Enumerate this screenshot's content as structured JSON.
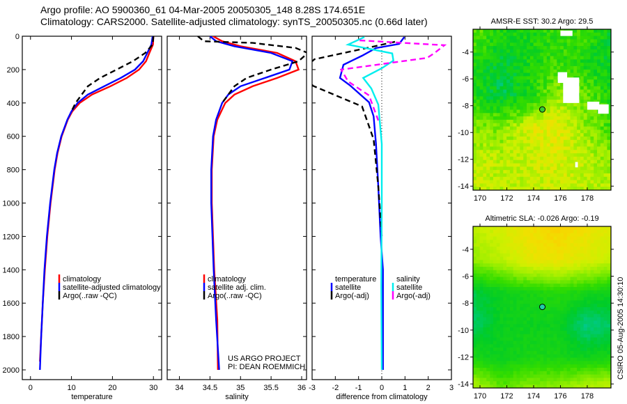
{
  "title_line1": "Argo profile: AO 5900360_61 04-Mar-2005 20050305_148 8.28S 174.651E",
  "title_line2": "Climatology: CARS2000. Satellite-adjusted climatology: synTS_20050305.nc (0.66d later)",
  "credit_line1": "US ARGO PROJECT",
  "credit_line2": "PI: DEAN ROEMMICH",
  "timestamp": "CSIRO 05-Aug-2005 14:30:10",
  "colors": {
    "climatology": "#ff0000",
    "satellite": "#0000ff",
    "argo": "#000000",
    "sal_satellite": "#00eeee",
    "sal_argo": "#ff00ff"
  },
  "chart_data": [
    {
      "type": "line",
      "id": "temperature",
      "xlabel": "temperature",
      "ylabel": "",
      "xlim": [
        -2,
        32
      ],
      "ylim": [
        2055,
        0
      ],
      "xticks": [
        0,
        10,
        20,
        30
      ],
      "yticks": [
        0,
        200,
        400,
        600,
        800,
        1000,
        1200,
        1400,
        1600,
        1800,
        2000
      ],
      "legend": [
        "climatology",
        "satellite-adjusted climatology",
        "Argo(..raw -QC)"
      ],
      "series": [
        {
          "name": "climatology",
          "color": "#ff0000",
          "dash": false,
          "points": [
            [
              30,
              0
            ],
            [
              29.9,
              50
            ],
            [
              29,
              100
            ],
            [
              28.2,
              150
            ],
            [
              26.5,
              200
            ],
            [
              23.5,
              250
            ],
            [
              19.5,
              300
            ],
            [
              15,
              350
            ],
            [
              12,
              400
            ],
            [
              10.2,
              450
            ],
            [
              9.1,
              500
            ],
            [
              7.6,
              600
            ],
            [
              6.6,
              700
            ],
            [
              5.9,
              800
            ],
            [
              4.9,
              1000
            ],
            [
              4.1,
              1200
            ],
            [
              3.5,
              1400
            ],
            [
              3,
              1600
            ],
            [
              2.6,
              1800
            ],
            [
              2.3,
              1950
            ]
          ]
        },
        {
          "name": "satellite-adjusted climatology",
          "color": "#0000ff",
          "dash": false,
          "points": [
            [
              29.8,
              0
            ],
            [
              29.5,
              50
            ],
            [
              28.5,
              100
            ],
            [
              27.5,
              150
            ],
            [
              25.5,
              200
            ],
            [
              22,
              250
            ],
            [
              18,
              300
            ],
            [
              14,
              350
            ],
            [
              11.5,
              400
            ],
            [
              10,
              450
            ],
            [
              9,
              500
            ],
            [
              7.5,
              600
            ],
            [
              6.5,
              700
            ],
            [
              5.8,
              800
            ],
            [
              4.8,
              1000
            ],
            [
              4,
              1200
            ],
            [
              3.4,
              1400
            ],
            [
              3,
              1600
            ],
            [
              2.6,
              1800
            ],
            [
              2.3,
              2000
            ]
          ]
        },
        {
          "name": "Argo(..raw -QC)",
          "color": "#000000",
          "dash": true,
          "points": [
            [
              30,
              0
            ],
            [
              29.8,
              50
            ],
            [
              28,
              100
            ],
            [
              25,
              150
            ],
            [
              21,
              200
            ],
            [
              17,
              250
            ],
            [
              14,
              300
            ],
            [
              12.5,
              350
            ],
            [
              11,
              400
            ],
            [
              10,
              450
            ]
          ]
        }
      ]
    },
    {
      "type": "line",
      "id": "salinity",
      "xlabel": "salinity",
      "xlim": [
        33.8,
        36.08
      ],
      "ylim": [
        2055,
        0
      ],
      "xticks": [
        34,
        34.5,
        35,
        35.5,
        36
      ],
      "legend": [
        "climatology",
        "satellite adj. clim.",
        "Argo(..raw -QC)"
      ],
      "series": [
        {
          "name": "climatology",
          "color": "#ff0000",
          "dash": false,
          "points": [
            [
              34.55,
              0
            ],
            [
              34.7,
              30
            ],
            [
              35.0,
              60
            ],
            [
              35.6,
              100
            ],
            [
              35.9,
              150
            ],
            [
              35.95,
              200
            ],
            [
              35.6,
              250
            ],
            [
              35.2,
              300
            ],
            [
              34.9,
              350
            ],
            [
              34.75,
              400
            ],
            [
              34.62,
              500
            ],
            [
              34.56,
              600
            ],
            [
              34.53,
              800
            ],
            [
              34.53,
              1000
            ],
            [
              34.57,
              1400
            ],
            [
              34.62,
              1700
            ],
            [
              34.63,
              2000
            ]
          ]
        },
        {
          "name": "satellite adj. clim.",
          "color": "#0000ff",
          "dash": false,
          "points": [
            [
              34.5,
              0
            ],
            [
              34.6,
              30
            ],
            [
              34.9,
              60
            ],
            [
              35.5,
              100
            ],
            [
              35.85,
              150
            ],
            [
              35.8,
              200
            ],
            [
              35.4,
              250
            ],
            [
              35.0,
              300
            ],
            [
              34.8,
              350
            ],
            [
              34.7,
              400
            ],
            [
              34.6,
              500
            ],
            [
              34.55,
              600
            ],
            [
              34.52,
              800
            ],
            [
              34.52,
              1000
            ],
            [
              34.56,
              1400
            ],
            [
              34.6,
              1700
            ],
            [
              34.65,
              2000
            ]
          ]
        },
        {
          "name": "Argo(..raw -QC)",
          "color": "#000000",
          "dash": true,
          "points": [
            [
              34.3,
              0
            ],
            [
              34.4,
              30
            ],
            [
              35.2,
              40
            ],
            [
              35.9,
              70
            ],
            [
              36.1,
              100
            ],
            [
              35.95,
              150
            ],
            [
              35.5,
              200
            ],
            [
              35.1,
              250
            ],
            [
              34.9,
              300
            ],
            [
              34.8,
              350
            ],
            [
              34.7,
              400
            ]
          ]
        }
      ]
    },
    {
      "type": "line",
      "id": "difference",
      "xlabel": "difference from climatology",
      "xlim": [
        -3,
        3
      ],
      "ylim": [
        2055,
        0
      ],
      "xticks": [
        -3,
        -2,
        -1,
        0,
        1,
        2,
        3
      ],
      "legend_temperature": {
        "heading": "temperature",
        "items": [
          "satellite",
          "Argo(-adj)"
        ]
      },
      "legend_salinity": {
        "heading": "salinity",
        "items": [
          "satellite",
          "Argo(-adj)"
        ]
      },
      "series": [
        {
          "name": "temperature satellite",
          "color": "#0000ff",
          "dash": false,
          "points": [
            [
              0.97,
              5
            ],
            [
              0.75,
              46
            ],
            [
              -0.25,
              71
            ],
            [
              -0.85,
              117
            ],
            [
              -1.65,
              171
            ],
            [
              -1.8,
              250
            ],
            [
              -1.35,
              297
            ],
            [
              -0.55,
              396
            ],
            [
              -0.35,
              480
            ],
            [
              -0.25,
              646
            ],
            [
              -0.15,
              900
            ],
            [
              -0.05,
              1200
            ],
            [
              0.05,
              1400
            ],
            [
              0.05,
              2000
            ]
          ]
        },
        {
          "name": "temperature Argo(-adj)",
          "color": "#000000",
          "dash": true,
          "points": [
            [
              0.57,
              33
            ],
            [
              -0.35,
              62
            ],
            [
              -2.9,
              138
            ],
            [
              -3,
              150
            ]
          ]
        },
        {
          "name": "temperature Argo(-adj) deep",
          "color": "#000000",
          "dash": true,
          "points": [
            [
              -3,
              290
            ],
            [
              -2.97,
              297
            ],
            [
              -0.85,
              421
            ],
            [
              -0.35,
              618
            ],
            [
              -0.15,
              900
            ],
            [
              0,
              1200
            ]
          ]
        },
        {
          "name": "salinity satellite",
          "color": "#00eeee",
          "dash": false,
          "points": [
            [
              -0.75,
              5
            ],
            [
              -1.45,
              50
            ],
            [
              -0.25,
              84
            ],
            [
              0.45,
              103
            ],
            [
              0.5,
              146
            ],
            [
              0,
              192
            ],
            [
              -0.8,
              250
            ],
            [
              -0.45,
              313
            ],
            [
              -0.15,
              410
            ],
            [
              0,
              646
            ],
            [
              0,
              1000
            ],
            [
              -0.02,
              1500
            ],
            [
              0,
              2000
            ]
          ]
        },
        {
          "name": "salinity Argo(-adj)",
          "color": "#ff00ff",
          "dash": true,
          "points": [
            [
              -0.95,
              25
            ],
            [
              2.7,
              54
            ],
            [
              2.25,
              103
            ],
            [
              1.95,
              130
            ],
            [
              -1.75,
              200
            ],
            [
              -1.45,
              271
            ],
            [
              -0.55,
              355
            ],
            [
              -0.15,
              505
            ]
          ]
        }
      ]
    },
    {
      "type": "heatmap",
      "id": "sst_map",
      "title": "AMSR-E SST: 30.2 Argo: 29.5",
      "xlim": [
        169.48,
        179.77
      ],
      "ylim": [
        -14.3,
        -2.3
      ],
      "xticks": [
        170,
        172,
        174,
        176,
        178
      ],
      "yticks": [
        -4,
        -6,
        -8,
        -10,
        -12,
        -14
      ],
      "float_position": [
        174.651,
        -8.28
      ],
      "float_color": "#33cc33",
      "field_rows_north_to_south": [
        [
          0.5,
          0.3,
          0.3,
          0.4,
          0.4,
          0.2
        ],
        [
          0.3,
          0.2,
          0.3,
          0.4,
          0.3,
          0.2
        ],
        [
          0.3,
          0.15,
          0.3,
          0.6,
          0.5,
          0.3
        ],
        [
          0.55,
          0.55,
          0.8,
          0.85,
          0.6,
          0.4
        ],
        [
          0.7,
          0.7,
          0.72,
          0.8,
          0.7,
          0.6
        ],
        [
          0.7,
          0.7,
          0.7,
          0.72,
          0.7,
          0.7
        ]
      ],
      "missing_boxes": [
        [
          176,
          -2.4,
          176.9,
          -2.8
        ],
        [
          175.8,
          -5.5,
          176.5,
          -6.3
        ],
        [
          176.2,
          -5.9,
          177.4,
          -7.8
        ],
        [
          178,
          -7.7,
          178.9,
          -8.3
        ],
        [
          178.8,
          -7.9,
          179.6,
          -8.6
        ],
        [
          177.1,
          -12.2,
          177.3,
          -12.6
        ]
      ]
    },
    {
      "type": "heatmap",
      "id": "sla_map",
      "title": "Altimetric SLA: -0.026 Argo: -0.19",
      "xlim": [
        169.48,
        179.77
      ],
      "ylim": [
        -14.3,
        -2.3
      ],
      "xticks": [
        170,
        172,
        174,
        176,
        178
      ],
      "yticks": [
        -4,
        -6,
        -8,
        -10,
        -12,
        -14
      ],
      "float_position": [
        174.651,
        -8.28
      ],
      "float_color": "#22ccaa",
      "field_rows_north_to_south": [
        [
          0.7,
          0.8,
          0.9,
          0.95,
          0.9,
          0.8
        ],
        [
          0.6,
          0.7,
          0.85,
          0.88,
          0.8,
          0.72
        ],
        [
          0.15,
          0.25,
          0.3,
          0.35,
          0.3,
          0.25
        ],
        [
          0.1,
          0.25,
          0.25,
          0.25,
          0.05,
          0.1
        ],
        [
          0.3,
          0.25,
          0.3,
          0.3,
          0.25,
          0.3
        ],
        [
          0.7,
          0.5,
          0.6,
          0.6,
          0.72,
          0.75
        ]
      ],
      "missing_boxes": []
    }
  ]
}
